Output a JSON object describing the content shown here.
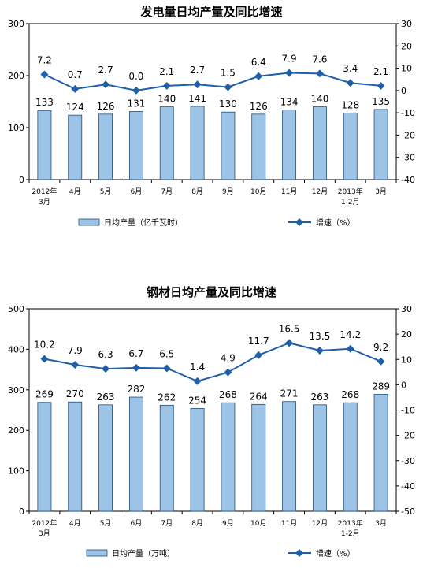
{
  "chart_data": [
    {
      "type": "bar",
      "title": "发电量日均产量及同比增速",
      "categories": [
        "2012年\n3月",
        "4月",
        "5月",
        "6月",
        "7月",
        "8月",
        "9月",
        "10月",
        "11月",
        "12月",
        "2013年\n1-2月",
        "3月"
      ],
      "series": [
        {
          "name": "日均产量（亿千瓦时）",
          "type": "bar",
          "axis": "left",
          "values": [
            133,
            124,
            126,
            131,
            140,
            141,
            130,
            126,
            134,
            140,
            128,
            135
          ]
        },
        {
          "name": "增速（%）",
          "type": "line",
          "axis": "right",
          "values": [
            7.2,
            0.7,
            2.7,
            0.0,
            2.1,
            2.7,
            1.5,
            6.4,
            7.9,
            7.6,
            3.4,
            2.1
          ],
          "labels": [
            "7.2",
            "0.7",
            "2.7",
            "0.0",
            "2.1",
            "2.7",
            "1.5",
            "6.4",
            "7.9",
            "7.6",
            "3.4",
            "2.1"
          ]
        }
      ],
      "ylim_left": [
        0,
        300
      ],
      "yticks_left": [
        0,
        100,
        200,
        300
      ],
      "ylim_right": [
        -40,
        30
      ],
      "yticks_right": [
        -40,
        -30,
        -20,
        -10,
        0,
        10,
        20,
        30
      ],
      "grid": false,
      "legend": "bottom",
      "colors": {
        "bar_fill": "#9dc3e6",
        "bar_stroke": "#1f4e79",
        "line": "#1f5fa8"
      }
    },
    {
      "type": "bar",
      "title": "钢材日均产量及同比增速",
      "categories": [
        "2012年\n3月",
        "4月",
        "5月",
        "6月",
        "7月",
        "8月",
        "9月",
        "10月",
        "11月",
        "12月",
        "2013年\n1-2月",
        "3月"
      ],
      "series": [
        {
          "name": "日均产量（万吨）",
          "type": "bar",
          "axis": "left",
          "values": [
            269,
            270,
            263,
            282,
            262,
            254,
            268,
            264,
            271,
            263,
            268,
            289
          ]
        },
        {
          "name": "增速（%）",
          "type": "line",
          "axis": "right",
          "values": [
            10.2,
            7.9,
            6.3,
            6.7,
            6.5,
            1.4,
            4.9,
            11.7,
            16.5,
            13.5,
            14.2,
            9.2
          ],
          "labels": [
            "10.2",
            "7.9",
            "6.3",
            "6.7",
            "6.5",
            "1.4",
            "4.9",
            "11.7",
            "16.5",
            "13.5",
            "14.2",
            "9.2"
          ]
        }
      ],
      "ylim_left": [
        0,
        500
      ],
      "yticks_left": [
        0,
        100,
        200,
        300,
        400,
        500
      ],
      "ylim_right": [
        -50,
        30
      ],
      "yticks_right": [
        -50,
        -40,
        -30,
        -20,
        -10,
        0,
        10,
        20,
        30
      ],
      "grid": false,
      "legend": "bottom",
      "colors": {
        "bar_fill": "#9dc3e6",
        "bar_stroke": "#1f4e79",
        "line": "#1f5fa8"
      }
    }
  ]
}
